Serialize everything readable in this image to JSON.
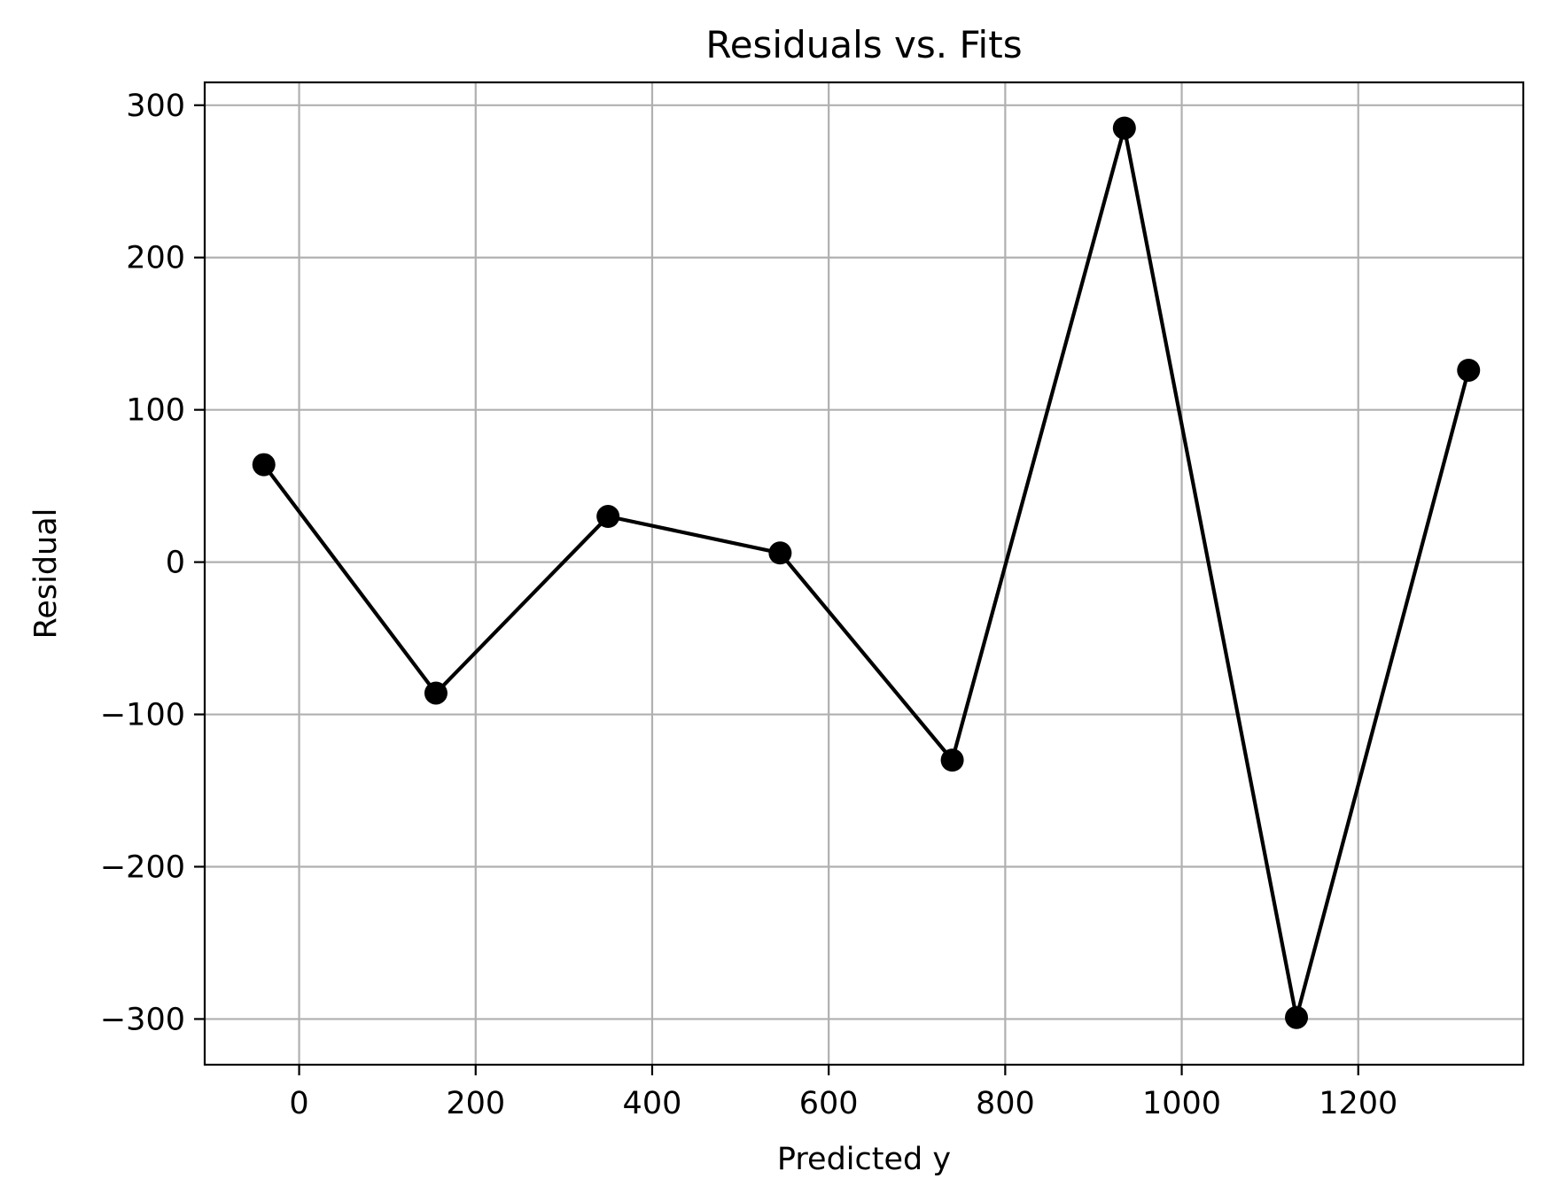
{
  "chart_data": {
    "type": "line",
    "title": "Residuals vs. Fits",
    "xlabel": "Predicted y",
    "ylabel": "Residual",
    "xlim": [
      -107,
      1387
    ],
    "ylim": [
      -330,
      315
    ],
    "xticks": [
      0,
      200,
      400,
      600,
      800,
      1000,
      1200
    ],
    "xtick_labels": [
      "0",
      "200",
      "400",
      "600",
      "800",
      "1000",
      "1200"
    ],
    "yticks": [
      300,
      200,
      100,
      0,
      -100,
      -200,
      -300
    ],
    "ytick_labels": [
      "300",
      "200",
      "100",
      "0",
      "−100",
      "−200",
      "−300"
    ],
    "grid": true,
    "legend": false,
    "series": [
      {
        "color": "#000000",
        "marker": "circle",
        "x": [
          -40,
          155,
          350,
          545,
          740,
          935,
          1130,
          1325
        ],
        "y": [
          64,
          -86,
          30,
          6,
          -130,
          285,
          -299,
          126
        ]
      }
    ]
  }
}
